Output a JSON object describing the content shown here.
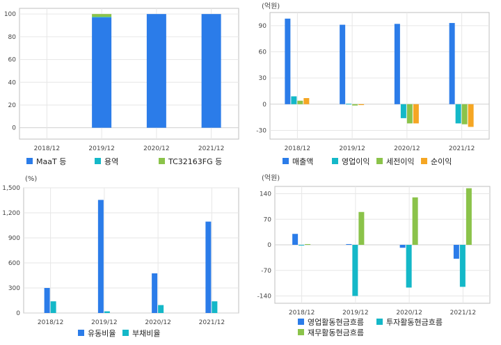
{
  "colors": {
    "blue": "#2b7ce9",
    "teal": "#14b8c8",
    "green": "#8bc34a",
    "orange": "#f5a623",
    "grid": "#e6e6e6",
    "frame": "#bfbfbf"
  },
  "chart_data": [
    {
      "type": "bar",
      "stacked": true,
      "unit": "",
      "categories": [
        "2018/12",
        "2019/12",
        "2020/12",
        "2021/12"
      ],
      "ylim": [
        -10,
        105
      ],
      "yticks": [
        0,
        20,
        40,
        60,
        80,
        100
      ],
      "ytick_labels": [
        "0",
        "20",
        "40",
        "60",
        "80",
        "100"
      ],
      "series": [
        {
          "name": "MaaT 등",
          "color": "blue",
          "values": [
            0,
            97,
            100,
            100
          ]
        },
        {
          "name": "용역",
          "color": "teal",
          "values": [
            0,
            0.5,
            0,
            0
          ]
        },
        {
          "name": "TC32163FG 등",
          "color": "green",
          "values": [
            0,
            2.5,
            0,
            0
          ]
        }
      ],
      "grid": true,
      "legend": "bottom"
    },
    {
      "type": "bar",
      "stacked": false,
      "unit": "(억원)",
      "categories": [
        "2018/12",
        "2019/12",
        "2020/12",
        "2021/12"
      ],
      "ylim": [
        -40,
        105
      ],
      "yticks": [
        -30,
        0,
        30,
        60,
        90
      ],
      "ytick_labels": [
        "-30",
        "0",
        "30",
        "60",
        "90"
      ],
      "series": [
        {
          "name": "매출액",
          "color": "blue",
          "values": [
            98,
            91,
            92,
            93
          ]
        },
        {
          "name": "영업이익",
          "color": "teal",
          "values": [
            9,
            0.5,
            -16,
            -22
          ]
        },
        {
          "name": "세전이익",
          "color": "green",
          "values": [
            4,
            -1.5,
            -22,
            -23
          ]
        },
        {
          "name": "순이익",
          "color": "orange",
          "values": [
            7,
            -1,
            -22,
            -26
          ]
        }
      ],
      "grid": true,
      "legend": "bottom"
    },
    {
      "type": "bar",
      "stacked": false,
      "unit": "(%)",
      "categories": [
        "2018/12",
        "2019/12",
        "2020/12",
        "2021/12"
      ],
      "ylim": [
        0,
        1500
      ],
      "yticks": [
        0,
        300,
        600,
        900,
        1200,
        1500
      ],
      "ytick_labels": [
        "0",
        "300",
        "600",
        "900",
        "1,200",
        "1,500"
      ],
      "series": [
        {
          "name": "유동비율",
          "color": "blue",
          "values": [
            300,
            1355,
            475,
            1095
          ]
        },
        {
          "name": "부채비율",
          "color": "teal",
          "values": [
            140,
            20,
            95,
            140
          ]
        }
      ],
      "grid": true,
      "legend": "bottom"
    },
    {
      "type": "bar",
      "stacked": false,
      "unit": "(억원)",
      "categories": [
        "2018/12",
        "2019/12",
        "2020/12",
        "2021/12"
      ],
      "ylim": [
        -160,
        160
      ],
      "yticks": [
        -140,
        -70,
        0,
        70,
        140
      ],
      "ytick_labels": [
        "-140",
        "-70",
        "0",
        "70",
        "140"
      ],
      "series": [
        {
          "name": "영업활동현금흐름",
          "color": "blue",
          "values": [
            30,
            2,
            -8,
            -38
          ]
        },
        {
          "name": "투자활동현금흐름",
          "color": "teal",
          "values": [
            0,
            -140,
            -117,
            -115
          ]
        },
        {
          "name": "재무활동현금흐름",
          "color": "green",
          "values": [
            2,
            90,
            130,
            155
          ]
        }
      ],
      "grid": true,
      "legend": "bottom"
    }
  ]
}
